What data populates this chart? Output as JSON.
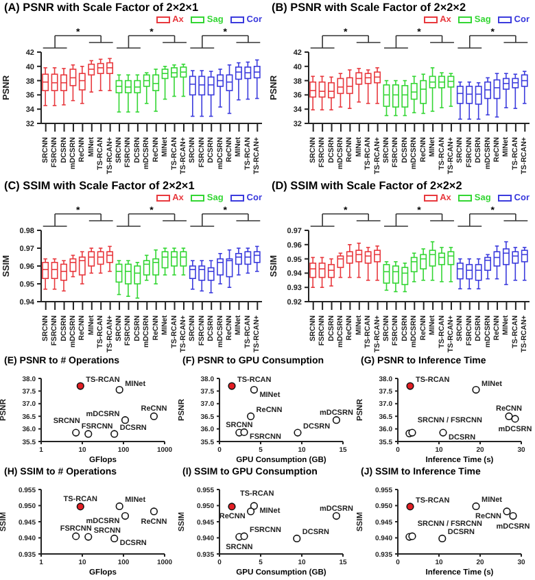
{
  "chart_data": [
    {
      "type": "box",
      "title": "(A) PSNR with Scale Factor of 2×2×1",
      "ylabel": "PSNR",
      "legend": "top right",
      "ylim": [
        32,
        42
      ],
      "yticks": [
        32,
        34,
        36,
        38,
        40,
        42
      ],
      "annotations": [
        "*",
        "*",
        "*"
      ],
      "categories": [
        "SRCNN",
        "FSRCNN",
        "DCSRN",
        "mDCSRN",
        "ReCNN",
        "MINet",
        "TS-RCAN",
        "TS-RCAN+",
        "SRCNN",
        "FSRCNN",
        "DCSRN",
        "mDCSRN",
        "ReCNN",
        "MINet",
        "TS-RCAN",
        "TS-RCAN+",
        "SRCNN",
        "FSRCNN",
        "DCSRN",
        "mDCSRN",
        "ReCNN",
        "MINet",
        "TS-RCAN",
        "TS-RCAN+"
      ],
      "series": [
        {
          "name": "Ax",
          "color": "#e8383d",
          "boxes": [
            {
              "low": 34.5,
              "q1": 36.6,
              "median": 37.8,
              "q3": 38.9,
              "high": 39.8
            },
            {
              "low": 34.5,
              "q1": 36.6,
              "median": 37.7,
              "q3": 38.9,
              "high": 39.8
            },
            {
              "low": 34.6,
              "q1": 36.6,
              "median": 37.7,
              "q3": 38.8,
              "high": 39.7
            },
            {
              "low": 35.2,
              "q1": 37.3,
              "median": 38.4,
              "q3": 39.6,
              "high": 40.2
            },
            {
              "low": 34.8,
              "q1": 36.7,
              "median": 38.0,
              "q3": 39.0,
              "high": 40.0
            },
            {
              "low": 36.4,
              "q1": 38.8,
              "median": 39.6,
              "q3": 40.3,
              "high": 40.8
            },
            {
              "low": 36.6,
              "q1": 39.0,
              "median": 39.8,
              "q3": 40.4,
              "high": 41.0
            },
            {
              "low": 36.6,
              "q1": 39.0,
              "median": 39.8,
              "q3": 40.5,
              "high": 41.1
            },
            null,
            null,
            null,
            null,
            null,
            null,
            null,
            null,
            null,
            null,
            null,
            null,
            null,
            null,
            null,
            null
          ]
        },
        {
          "name": "Sag",
          "color": "#33d633",
          "boxes": [
            null,
            null,
            null,
            null,
            null,
            null,
            null,
            null,
            {
              "low": 33.6,
              "q1": 36.3,
              "median": 37.2,
              "q3": 38.0,
              "high": 38.8
            },
            {
              "low": 33.6,
              "q1": 36.3,
              "median": 37.1,
              "q3": 38.0,
              "high": 38.8
            },
            {
              "low": 33.6,
              "q1": 36.3,
              "median": 37.1,
              "q3": 38.0,
              "high": 38.8
            },
            {
              "low": 34.8,
              "q1": 37.2,
              "median": 38.0,
              "q3": 38.8,
              "high": 39.1
            },
            {
              "low": 33.7,
              "q1": 36.6,
              "median": 37.6,
              "q3": 38.8,
              "high": 39.6
            },
            {
              "low": 35.4,
              "q1": 38.3,
              "median": 39.0,
              "q3": 39.6,
              "high": 40.0
            },
            {
              "low": 35.8,
              "q1": 38.5,
              "median": 39.1,
              "q3": 39.8,
              "high": 40.2
            },
            {
              "low": 35.8,
              "q1": 38.5,
              "median": 39.2,
              "q3": 39.9,
              "high": 40.3
            },
            null,
            null,
            null,
            null,
            null,
            null,
            null,
            null
          ]
        },
        {
          "name": "Cor",
          "color": "#3b3bdd",
          "boxes": [
            null,
            null,
            null,
            null,
            null,
            null,
            null,
            null,
            null,
            null,
            null,
            null,
            null,
            null,
            null,
            null,
            {
              "low": 33.0,
              "q1": 36.0,
              "median": 37.5,
              "q3": 38.6,
              "high": 39.4
            },
            {
              "low": 33.0,
              "q1": 36.0,
              "median": 37.4,
              "q3": 38.6,
              "high": 39.4
            },
            {
              "low": 33.0,
              "q1": 36.0,
              "median": 37.4,
              "q3": 38.5,
              "high": 39.3
            },
            {
              "low": 34.3,
              "q1": 37.2,
              "median": 38.0,
              "q3": 38.8,
              "high": 39.6
            },
            {
              "low": 33.4,
              "q1": 36.6,
              "median": 37.8,
              "q3": 38.8,
              "high": 40.2
            },
            {
              "low": 35.3,
              "q1": 38.2,
              "median": 39.2,
              "q3": 39.9,
              "high": 40.5
            },
            {
              "low": 35.4,
              "q1": 38.3,
              "median": 39.1,
              "q3": 39.9,
              "high": 40.6
            },
            {
              "low": 35.5,
              "q1": 38.4,
              "median": 39.2,
              "q3": 40.0,
              "high": 40.9
            }
          ]
        }
      ]
    },
    {
      "type": "box",
      "title": "(B) PSNR with Scale Factor of 2×2×2",
      "ylabel": "PSNR",
      "legend": "top right",
      "ylim": [
        32,
        42
      ],
      "yticks": [
        32,
        34,
        36,
        38,
        40,
        42
      ],
      "annotations": [
        "*",
        "*",
        "*"
      ],
      "categories": [
        "SRCNN",
        "FSRCNN",
        "DCSRN",
        "mDCSRN",
        "ReCNN",
        "MINet",
        "TS-RCAN",
        "TS-RCAN+",
        "SRCNN",
        "FSRCNN",
        "DCSRN",
        "mDCSRN",
        "ReCNN",
        "MINet",
        "TS-RCAN",
        "TS-RCAN+",
        "SRCNN",
        "FSRCNN",
        "DCSRN",
        "mDCSRN",
        "ReCNN",
        "MINet",
        "TS-RCAN",
        "TS-RCAN+"
      ],
      "series": [
        {
          "name": "Ax",
          "color": "#e8383d",
          "boxes": [
            {
              "low": 33.9,
              "q1": 35.7,
              "median": 36.6,
              "q3": 37.8,
              "high": 38.6
            },
            {
              "low": 33.9,
              "q1": 35.7,
              "median": 36.5,
              "q3": 37.8,
              "high": 38.6
            },
            {
              "low": 33.9,
              "q1": 35.6,
              "median": 36.5,
              "q3": 37.7,
              "high": 38.5
            },
            {
              "low": 34.3,
              "q1": 36.2,
              "median": 37.1,
              "q3": 38.3,
              "high": 39.0
            },
            {
              "low": 34.1,
              "q1": 36.2,
              "median": 37.2,
              "q3": 38.4,
              "high": 39.5
            },
            {
              "low": 35.0,
              "q1": 37.5,
              "median": 38.3,
              "q3": 39.1,
              "high": 39.7
            },
            {
              "low": 34.8,
              "q1": 37.6,
              "median": 38.4,
              "q3": 39.0,
              "high": 39.5
            },
            {
              "low": 34.8,
              "q1": 37.7,
              "median": 38.5,
              "q3": 39.2,
              "high": 39.8
            },
            null,
            null,
            null,
            null,
            null,
            null,
            null,
            null,
            null,
            null,
            null,
            null,
            null,
            null,
            null,
            null
          ]
        },
        {
          "name": "Sag",
          "color": "#33d633",
          "boxes": [
            null,
            null,
            null,
            null,
            null,
            null,
            null,
            null,
            {
              "low": 33.1,
              "q1": 34.4,
              "median": 36.0,
              "q3": 37.4,
              "high": 38.0
            },
            {
              "low": 33.1,
              "q1": 34.3,
              "median": 36.0,
              "q3": 37.4,
              "high": 38.0
            },
            {
              "low": 33.1,
              "q1": 34.3,
              "median": 36.0,
              "q3": 37.3,
              "high": 38.0
            },
            {
              "low": 33.5,
              "q1": 35.4,
              "median": 36.4,
              "q3": 37.6,
              "high": 38.6
            },
            {
              "low": 33.4,
              "q1": 34.8,
              "median": 36.8,
              "q3": 38.0,
              "high": 38.9
            },
            {
              "low": 33.7,
              "q1": 37.0,
              "median": 37.8,
              "q3": 38.6,
              "high": 39.8
            },
            {
              "low": 34.2,
              "q1": 37.0,
              "median": 37.8,
              "q3": 38.6,
              "high": 39.1
            },
            {
              "low": 34.4,
              "q1": 37.1,
              "median": 37.9,
              "q3": 38.6,
              "high": 39.0
            },
            null,
            null,
            null,
            null,
            null,
            null,
            null,
            null
          ]
        },
        {
          "name": "Cor",
          "color": "#3b3bdd",
          "boxes": [
            null,
            null,
            null,
            null,
            null,
            null,
            null,
            null,
            null,
            null,
            null,
            null,
            null,
            null,
            null,
            null,
            {
              "low": 32.6,
              "q1": 34.8,
              "median": 36.2,
              "q3": 37.2,
              "high": 37.8
            },
            {
              "low": 32.6,
              "q1": 34.8,
              "median": 36.1,
              "q3": 37.2,
              "high": 37.8
            },
            {
              "low": 32.6,
              "q1": 34.7,
              "median": 36.1,
              "q3": 37.2,
              "high": 37.7
            },
            {
              "low": 33.2,
              "q1": 35.5,
              "median": 36.7,
              "q3": 37.8,
              "high": 38.4
            },
            {
              "low": 32.9,
              "q1": 35.5,
              "median": 37.0,
              "q3": 38.1,
              "high": 39.0
            },
            {
              "low": 34.2,
              "q1": 36.8,
              "median": 37.6,
              "q3": 38.3,
              "high": 39.0
            },
            {
              "low": 34.1,
              "q1": 37.0,
              "median": 37.7,
              "q3": 38.3,
              "high": 38.9
            },
            {
              "low": 34.8,
              "q1": 37.2,
              "median": 38.0,
              "q3": 38.8,
              "high": 39.3
            }
          ]
        }
      ]
    },
    {
      "type": "box",
      "title": "(C) SSIM with Scale Factor of 2×2×1",
      "ylabel": "SSIM",
      "legend": "top right",
      "ylim": [
        0.94,
        0.98
      ],
      "yticks": [
        0.94,
        0.95,
        0.96,
        0.97,
        0.98
      ],
      "annotations": [
        "*",
        "*",
        "*"
      ],
      "categories": [
        "SRCNN",
        "FSRCNN",
        "DCSRN",
        "mDCSRN",
        "ReCNN",
        "MINet",
        "TS-RCAN",
        "TS-RCAN+",
        "SRCNN",
        "FSRCNN",
        "DCSRN",
        "mDCSRN",
        "ReCNN",
        "MINet",
        "TS-RCAN",
        "TS-RCAN+",
        "SRCNN",
        "FSRCNN",
        "DCSRN",
        "mDCSRN",
        "ReCNN",
        "MINet",
        "TS-RCAN",
        "TS-RCAN+"
      ],
      "series": [
        {
          "name": "Ax",
          "color": "#e8383d",
          "boxes": [
            {
              "low": 0.947,
              "q1": 0.953,
              "median": 0.958,
              "q3": 0.962,
              "high": 0.964
            },
            {
              "low": 0.947,
              "q1": 0.953,
              "median": 0.958,
              "q3": 0.962,
              "high": 0.964
            },
            {
              "low": 0.946,
              "q1": 0.952,
              "median": 0.957,
              "q3": 0.961,
              "high": 0.963
            },
            {
              "low": 0.954,
              "q1": 0.957,
              "median": 0.962,
              "q3": 0.964,
              "high": 0.966
            },
            {
              "low": 0.95,
              "q1": 0.955,
              "median": 0.963,
              "q3": 0.965,
              "high": 0.968
            },
            {
              "low": 0.956,
              "q1": 0.96,
              "median": 0.965,
              "q3": 0.968,
              "high": 0.97
            },
            {
              "low": 0.956,
              "q1": 0.961,
              "median": 0.965,
              "q3": 0.968,
              "high": 0.97
            },
            {
              "low": 0.957,
              "q1": 0.962,
              "median": 0.966,
              "q3": 0.968,
              "high": 0.971
            },
            null,
            null,
            null,
            null,
            null,
            null,
            null,
            null,
            null,
            null,
            null,
            null,
            null,
            null,
            null,
            null
          ]
        },
        {
          "name": "Sag",
          "color": "#33d633",
          "boxes": [
            null,
            null,
            null,
            null,
            null,
            null,
            null,
            null,
            {
              "low": 0.944,
              "q1": 0.951,
              "median": 0.957,
              "q3": 0.961,
              "high": 0.963
            },
            {
              "low": 0.943,
              "q1": 0.95,
              "median": 0.957,
              "q3": 0.961,
              "high": 0.963
            },
            {
              "low": 0.942,
              "q1": 0.95,
              "median": 0.956,
              "q3": 0.96,
              "high": 0.962
            },
            {
              "low": 0.952,
              "q1": 0.955,
              "median": 0.961,
              "q3": 0.963,
              "high": 0.966
            },
            {
              "low": 0.95,
              "q1": 0.955,
              "median": 0.962,
              "q3": 0.964,
              "high": 0.969
            },
            {
              "low": 0.955,
              "q1": 0.959,
              "median": 0.965,
              "q3": 0.968,
              "high": 0.97
            },
            {
              "low": 0.955,
              "q1": 0.96,
              "median": 0.965,
              "q3": 0.968,
              "high": 0.97
            },
            {
              "low": 0.955,
              "q1": 0.96,
              "median": 0.965,
              "q3": 0.968,
              "high": 0.97
            },
            null,
            null,
            null,
            null,
            null,
            null,
            null,
            null
          ]
        },
        {
          "name": "Cor",
          "color": "#3b3bdd",
          "boxes": [
            null,
            null,
            null,
            null,
            null,
            null,
            null,
            null,
            null,
            null,
            null,
            null,
            null,
            null,
            null,
            null,
            {
              "low": 0.947,
              "q1": 0.953,
              "median": 0.958,
              "q3": 0.96,
              "high": 0.963
            },
            {
              "low": 0.946,
              "q1": 0.952,
              "median": 0.958,
              "q3": 0.96,
              "high": 0.963
            },
            {
              "low": 0.945,
              "q1": 0.952,
              "median": 0.957,
              "q3": 0.959,
              "high": 0.963
            },
            {
              "low": 0.95,
              "q1": 0.955,
              "median": 0.962,
              "q3": 0.964,
              "high": 0.967
            },
            {
              "low": 0.948,
              "q1": 0.954,
              "median": 0.963,
              "q3": 0.964,
              "high": 0.969
            },
            {
              "low": 0.955,
              "q1": 0.961,
              "median": 0.965,
              "q3": 0.967,
              "high": 0.97
            },
            {
              "low": 0.956,
              "q1": 0.961,
              "median": 0.965,
              "q3": 0.968,
              "high": 0.97
            },
            {
              "low": 0.957,
              "q1": 0.962,
              "median": 0.966,
              "q3": 0.968,
              "high": 0.971
            }
          ]
        }
      ]
    },
    {
      "type": "box",
      "title": "(D) SSIM with Scale Factor of 2×2×2",
      "ylabel": "SSIM",
      "legend": "top right",
      "ylim": [
        0.92,
        0.97
      ],
      "yticks": [
        0.92,
        0.93,
        0.94,
        0.95,
        0.96,
        0.97
      ],
      "annotations": [
        "*",
        "*",
        "*"
      ],
      "categories": [
        "SRCNN",
        "FSRCNN",
        "DCSRN",
        "mDCSRN",
        "ReCNN",
        "MINet",
        "TS-RCAN",
        "TS-RCAN+",
        "SRCNN",
        "FSRCNN",
        "DCSRN",
        "mDCSRN",
        "ReCNN",
        "MINet",
        "TS-RCAN",
        "TS-RCAN+",
        "SRCNN",
        "FSRCNN",
        "DCSRN",
        "mDCSRN",
        "ReCNN",
        "MINet",
        "TS-RCAN",
        "TS-RCAN+"
      ],
      "series": [
        {
          "name": "Ax",
          "color": "#e8383d",
          "boxes": [
            {
              "low": 0.93,
              "q1": 0.937,
              "median": 0.943,
              "q3": 0.947,
              "high": 0.951
            },
            {
              "low": 0.93,
              "q1": 0.937,
              "median": 0.943,
              "q3": 0.947,
              "high": 0.951
            },
            {
              "low": 0.931,
              "q1": 0.937,
              "median": 0.942,
              "q3": 0.946,
              "high": 0.95
            },
            {
              "low": 0.937,
              "q1": 0.944,
              "median": 0.95,
              "q3": 0.952,
              "high": 0.954
            },
            {
              "low": 0.937,
              "q1": 0.947,
              "median": 0.952,
              "q3": 0.955,
              "high": 0.96
            },
            {
              "low": 0.937,
              "q1": 0.948,
              "median": 0.953,
              "q3": 0.956,
              "high": 0.961
            },
            {
              "low": 0.935,
              "q1": 0.947,
              "median": 0.952,
              "q3": 0.955,
              "high": 0.958
            },
            {
              "low": 0.935,
              "q1": 0.948,
              "median": 0.953,
              "q3": 0.956,
              "high": 0.959
            },
            null,
            null,
            null,
            null,
            null,
            null,
            null,
            null,
            null,
            null,
            null,
            null,
            null,
            null,
            null,
            null
          ]
        },
        {
          "name": "Sag",
          "color": "#33d633",
          "boxes": [
            null,
            null,
            null,
            null,
            null,
            null,
            null,
            null,
            {
              "low": 0.928,
              "q1": 0.933,
              "median": 0.941,
              "q3": 0.946,
              "high": 0.948
            },
            {
              "low": 0.927,
              "q1": 0.933,
              "median": 0.941,
              "q3": 0.945,
              "high": 0.948
            },
            {
              "low": 0.927,
              "q1": 0.932,
              "median": 0.94,
              "q3": 0.944,
              "high": 0.947
            },
            {
              "low": 0.934,
              "q1": 0.941,
              "median": 0.948,
              "q3": 0.951,
              "high": 0.954
            },
            {
              "low": 0.935,
              "q1": 0.943,
              "median": 0.95,
              "q3": 0.953,
              "high": 0.957
            },
            {
              "low": 0.935,
              "q1": 0.945,
              "median": 0.953,
              "q3": 0.956,
              "high": 0.962
            },
            {
              "low": 0.934,
              "q1": 0.946,
              "median": 0.951,
              "q3": 0.954,
              "high": 0.958
            },
            {
              "low": 0.934,
              "q1": 0.946,
              "median": 0.952,
              "q3": 0.955,
              "high": 0.958
            },
            null,
            null,
            null,
            null,
            null,
            null,
            null,
            null
          ]
        },
        {
          "name": "Cor",
          "color": "#3b3bdd",
          "boxes": [
            null,
            null,
            null,
            null,
            null,
            null,
            null,
            null,
            null,
            null,
            null,
            null,
            null,
            null,
            null,
            null,
            {
              "low": 0.929,
              "q1": 0.936,
              "median": 0.943,
              "q3": 0.947,
              "high": 0.95
            },
            {
              "low": 0.929,
              "q1": 0.936,
              "median": 0.942,
              "q3": 0.946,
              "high": 0.95
            },
            {
              "low": 0.929,
              "q1": 0.935,
              "median": 0.942,
              "q3": 0.946,
              "high": 0.95
            },
            {
              "low": 0.936,
              "q1": 0.942,
              "median": 0.949,
              "q3": 0.951,
              "high": 0.953
            },
            {
              "low": 0.936,
              "q1": 0.945,
              "median": 0.951,
              "q3": 0.955,
              "high": 0.959
            },
            {
              "low": 0.932,
              "q1": 0.946,
              "median": 0.954,
              "q3": 0.957,
              "high": 0.962
            },
            {
              "low": 0.935,
              "q1": 0.947,
              "median": 0.952,
              "q3": 0.955,
              "high": 0.958
            },
            {
              "low": 0.935,
              "q1": 0.948,
              "median": 0.953,
              "q3": 0.956,
              "high": 0.958
            }
          ]
        }
      ]
    },
    {
      "type": "scatter",
      "title": "(E) PSNR to # Operations",
      "xlabel": "GFlops",
      "ylabel": "PSNR",
      "log": "x",
      "marker": "circle",
      "xlim": [
        1,
        1000
      ],
      "xticks": [
        1,
        10,
        100,
        1000
      ],
      "ylim": [
        35.5,
        38
      ],
      "yticks": [
        35.5,
        {
          "value": 36,
          "label": "36.0"
        },
        36.5,
        {
          "value": 37,
          "label": "37.0"
        },
        37.5,
        {
          "value": 38,
          "label": "38.0"
        }
      ],
      "series": [
        {
          "x": [
            9,
            80,
            550,
            110,
            7,
            14,
            60
          ],
          "values": [
            37.7,
            37.55,
            36.5,
            36.35,
            35.85,
            35.8,
            35.8
          ],
          "colors": [
            "#e31e24",
            "#ffffff",
            "#ffffff",
            "#ffffff",
            "#ffffff",
            "#ffffff",
            "#ffffff"
          ]
        }
      ],
      "annotations": [
        {
          "text": "TS-RCAN",
          "x": 9,
          "y": 37.7
        },
        {
          "text": "MINet",
          "x": 80,
          "y": 37.55
        },
        {
          "text": "ReCNN",
          "x": 550,
          "y": 36.5
        },
        {
          "text": "mDCSRN",
          "x": 110,
          "y": 36.35
        },
        {
          "text": "FSRCNN",
          "x": 7,
          "y": 35.85
        },
        {
          "text": "SRCNN",
          "x": 14,
          "y": 35.8
        },
        {
          "text": "DCSRN",
          "x": 60,
          "y": 35.8
        }
      ]
    },
    {
      "type": "scatter",
      "title": "(F) PSNR to GPU Consumption",
      "xlabel": "GPU Consumption (GB)",
      "ylabel": "PSNR",
      "marker": "circle",
      "xlim": [
        0,
        15
      ],
      "xticks": [
        0,
        5,
        10,
        15
      ],
      "ylim": [
        35.5,
        38
      ],
      "yticks": [
        35.5,
        {
          "value": 36,
          "label": "36.0"
        },
        36.5,
        {
          "value": 37,
          "label": "37.0"
        },
        37.5,
        {
          "value": 38,
          "label": "38.0"
        }
      ],
      "series": [
        {
          "x": [
            1.5,
            4.2,
            3.8,
            14.2,
            2.4,
            3.0,
            9.5
          ],
          "values": [
            37.7,
            37.55,
            36.5,
            36.35,
            35.85,
            35.87,
            35.85
          ],
          "colors": [
            "#e31e24",
            "#ffffff",
            "#ffffff",
            "#ffffff",
            "#ffffff",
            "#ffffff",
            "#ffffff"
          ]
        }
      ],
      "annotations": [
        {
          "text": "TS-RCAN",
          "x": 1.5,
          "y": 37.7
        },
        {
          "text": "MINet",
          "x": 4.2,
          "y": 37.55
        },
        {
          "text": "ReCNN",
          "x": 3.8,
          "y": 36.5
        },
        {
          "text": "mDCSRN",
          "x": 14.2,
          "y": 36.35
        },
        {
          "text": "SRCNN",
          "x": 2.4,
          "y": 35.85
        },
        {
          "text": "FSRCNN",
          "x": 3.0,
          "y": 35.87
        },
        {
          "text": "DCSRN",
          "x": 9.5,
          "y": 35.85
        }
      ]
    },
    {
      "type": "scatter",
      "title": "(G) PSNR to Inference Time",
      "xlabel": "Inference Time (s)",
      "ylabel": "PSNR",
      "marker": "circle",
      "xlim": [
        0,
        30
      ],
      "xticks": [
        0,
        10,
        20,
        30
      ],
      "ylim": [
        35.5,
        38
      ],
      "yticks": [
        35.5,
        {
          "value": 36,
          "label": "36.0"
        },
        36.5,
        {
          "value": 37,
          "label": "37.0"
        },
        37.5,
        {
          "value": 38,
          "label": "38.0"
        }
      ],
      "series": [
        {
          "x": [
            3,
            19,
            27,
            28.5,
            2.8,
            3.5,
            11
          ],
          "values": [
            37.7,
            37.55,
            36.5,
            36.4,
            35.82,
            35.85,
            35.85
          ],
          "colors": [
            "#e31e24",
            "#ffffff",
            "#ffffff",
            "#ffffff",
            "#ffffff",
            "#ffffff",
            "#ffffff"
          ]
        }
      ],
      "annotations": [
        {
          "text": "TS-RCAN",
          "x": 3,
          "y": 37.7
        },
        {
          "text": "MINet",
          "x": 19,
          "y": 37.55
        },
        {
          "text": "ReCNN",
          "x": 27,
          "y": 36.5
        },
        {
          "text": "mDCSRN",
          "x": 28.5,
          "y": 36.4
        },
        {
          "text": "SRCNN / FSRCNN",
          "x": 2.8,
          "y": 35.82
        },
        {
          "text": "DCSRN",
          "x": 11,
          "y": 35.85
        }
      ]
    },
    {
      "type": "scatter",
      "title": "(H) SSIM to # Operations",
      "xlabel": "GFlops",
      "ylabel": "SSIM",
      "log": "x",
      "marker": "circle",
      "xlim": [
        1,
        1000
      ],
      "xticks": [
        1,
        10,
        100,
        1000
      ],
      "ylim": [
        0.935,
        0.955
      ],
      "yticks": [
        0.935,
        {
          "value": 0.94,
          "label": "0.940"
        },
        0.945,
        {
          "value": 0.95,
          "label": "0.950"
        },
        0.955
      ],
      "series": [
        {
          "x": [
            9,
            80,
            550,
            110,
            7,
            14,
            60
          ],
          "values": [
            0.9497,
            0.9498,
            0.9482,
            0.9468,
            0.9405,
            0.9403,
            0.9398
          ],
          "colors": [
            "#e31e24",
            "#ffffff",
            "#ffffff",
            "#ffffff",
            "#ffffff",
            "#ffffff",
            "#ffffff"
          ]
        }
      ],
      "annotations": [
        {
          "text": "TS-RCAN",
          "x": 9,
          "y": 0.9497
        },
        {
          "text": "MINet",
          "x": 80,
          "y": 0.9498
        },
        {
          "text": "ReCNN",
          "x": 550,
          "y": 0.9482
        },
        {
          "text": "mDCSRN",
          "x": 110,
          "y": 0.9468
        },
        {
          "text": "FSRCNN",
          "x": 7,
          "y": 0.9405
        },
        {
          "text": "SRCNN",
          "x": 14,
          "y": 0.9403
        },
        {
          "text": "DCSRN",
          "x": 60,
          "y": 0.9398
        }
      ]
    },
    {
      "type": "scatter",
      "title": "(I) SSIM to GPU Consumption",
      "xlabel": "GPU Consumption (GB)",
      "ylabel": "SSIM",
      "marker": "circle",
      "xlim": [
        0,
        15
      ],
      "xticks": [
        0,
        5,
        10,
        15
      ],
      "ylim": [
        0.935,
        0.955
      ],
      "yticks": [
        0.935,
        {
          "value": 0.94,
          "label": "0.940"
        },
        0.945,
        {
          "value": 0.95,
          "label": "0.950"
        },
        0.955
      ],
      "series": [
        {
          "x": [
            1.5,
            4.2,
            3.8,
            14.2,
            2.4,
            3.0,
            9.4
          ],
          "values": [
            0.9497,
            0.9499,
            0.9482,
            0.9468,
            0.9403,
            0.9405,
            0.9398
          ],
          "colors": [
            "#e31e24",
            "#ffffff",
            "#ffffff",
            "#ffffff",
            "#ffffff",
            "#ffffff",
            "#ffffff"
          ]
        }
      ],
      "annotations": [
        {
          "text": "TS-RCAN",
          "x": 1.5,
          "y": 0.9497
        },
        {
          "text": "MINet",
          "x": 4.2,
          "y": 0.9499
        },
        {
          "text": "ReCNN",
          "x": 3.8,
          "y": 0.9482
        },
        {
          "text": "mDCSRN",
          "x": 14.2,
          "y": 0.9468
        },
        {
          "text": "SRCNN",
          "x": 2.4,
          "y": 0.9403
        },
        {
          "text": "FSRCNN",
          "x": 3.0,
          "y": 0.9405
        },
        {
          "text": "DCSRN",
          "x": 9.4,
          "y": 0.9398
        }
      ]
    },
    {
      "type": "scatter",
      "title": "(J) SSIM to Inference Time",
      "xlabel": "Inference Time (s)",
      "ylabel": "SSIM",
      "marker": "circle",
      "xlim": [
        0,
        30
      ],
      "xticks": [
        0,
        10,
        20,
        30
      ],
      "ylim": [
        0.935,
        0.955
      ],
      "yticks": [
        0.935,
        {
          "value": 0.94,
          "label": "0.940"
        },
        0.945,
        {
          "value": 0.95,
          "label": "0.950"
        },
        0.955
      ],
      "series": [
        {
          "x": [
            3,
            19,
            26.5,
            28,
            2.8,
            3.5,
            10.8
          ],
          "values": [
            0.9497,
            0.9498,
            0.9482,
            0.9468,
            0.9403,
            0.9405,
            0.9398
          ],
          "colors": [
            "#e31e24",
            "#ffffff",
            "#ffffff",
            "#ffffff",
            "#ffffff",
            "#ffffff",
            "#ffffff"
          ]
        }
      ],
      "annotations": [
        {
          "text": "TS-RCAN",
          "x": 3,
          "y": 0.9497
        },
        {
          "text": "MINet",
          "x": 19,
          "y": 0.9498
        },
        {
          "text": "ReCNN",
          "x": 26.5,
          "y": 0.9482
        },
        {
          "text": "mDCSRN",
          "x": 28,
          "y": 0.9468
        },
        {
          "text": "SRCNN / FSRCNN",
          "x": 2.8,
          "y": 0.9403
        },
        {
          "text": "DCSRN",
          "x": 10.8,
          "y": 0.9398
        }
      ]
    }
  ]
}
